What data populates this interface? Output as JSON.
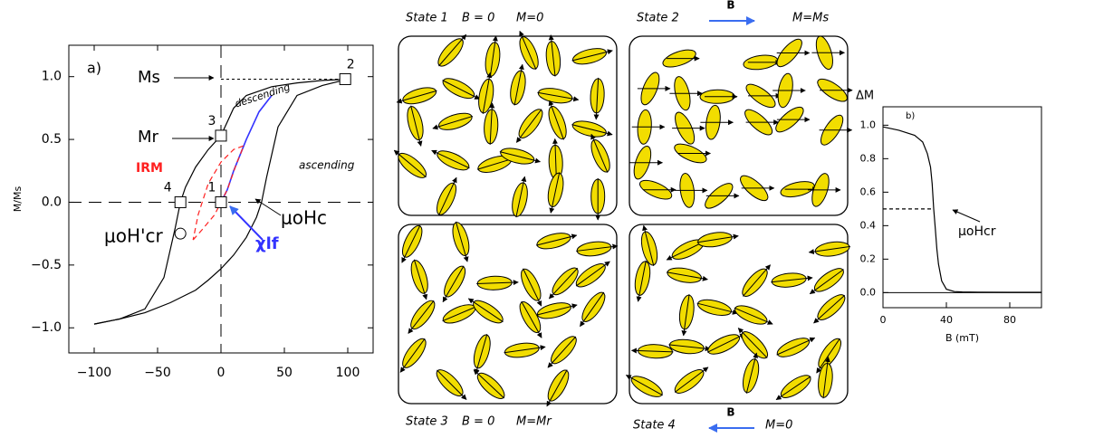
{
  "chart_data": [
    {
      "type": "line",
      "ylabel": "M/Ms",
      "xlim": [
        -120,
        120
      ],
      "ylim": [
        -1.2,
        1.25
      ],
      "xticks": [
        {
          "value": -100,
          "label": "−100"
        },
        {
          "value": -50,
          "label": "−50"
        },
        0,
        50,
        100
      ],
      "yticks": [
        {
          "value": 1,
          "label": "1.0"
        },
        {
          "value": 0.5,
          "label": "0.5"
        },
        {
          "value": 0,
          "label": "0.0"
        },
        {
          "value": -0.5,
          "label": "−0.5"
        },
        {
          "value": -1,
          "label": "−1.0"
        }
      ],
      "series": [
        {
          "color": "#000000",
          "dash": false,
          "x": [
            100,
            80,
            60,
            40,
            20,
            10,
            0,
            -10,
            -20,
            -28,
            -32,
            -36,
            -45,
            -60,
            -80,
            -100
          ],
          "values": [
            0.98,
            0.97,
            0.95,
            0.92,
            0.85,
            0.75,
            0.53,
            0.42,
            0.28,
            0.12,
            0,
            -0.2,
            -0.6,
            -0.85,
            -0.93,
            -0.97
          ]
        },
        {
          "color": "#000000",
          "dash": false,
          "x": [
            -100,
            -80,
            -60,
            -40,
            -20,
            -10,
            0,
            10,
            20,
            28,
            32,
            36,
            45,
            60,
            80,
            100
          ],
          "values": [
            -0.97,
            -0.93,
            -0.88,
            -0.8,
            -0.7,
            -0.62,
            -0.53,
            -0.42,
            -0.28,
            -0.12,
            0,
            0.2,
            0.6,
            0.85,
            0.93,
            0.98
          ]
        },
        {
          "color": "#3333ff",
          "dash": false,
          "x": [
            0,
            5,
            10,
            20,
            30,
            40
          ],
          "values": [
            0,
            0.1,
            0.25,
            0.5,
            0.72,
            0.85
          ]
        },
        {
          "color": "#ff2020",
          "dash": true,
          "x": [
            -22,
            -15,
            -5,
            5,
            12,
            18,
            10,
            0,
            -10,
            -18,
            -22
          ],
          "values": [
            -0.3,
            -0.22,
            -0.1,
            0.1,
            0.3,
            0.45,
            0.42,
            0.32,
            0.15,
            -0.1,
            -0.3
          ]
        }
      ],
      "points": {
        "x": [
          0,
          98,
          0,
          -32,
          -32
        ],
        "values": [
          0,
          0.98,
          0.53,
          0,
          -0.25
        ],
        "markers": [
          "square",
          "square",
          "square",
          "square",
          "circle"
        ],
        "point_labels": [
          "1",
          "2",
          "3",
          "4",
          null
        ]
      },
      "annotations": [
        {
          "text": "a)"
        },
        {
          "text": "Ms"
        },
        {
          "text": "Mr"
        },
        {
          "text": "descending"
        },
        {
          "text": "ascending"
        },
        {
          "text": "IRM",
          "color": "#ff2020"
        },
        {
          "text": "χlf",
          "color": "#3333ff"
        },
        {
          "text": "μoH'cr"
        },
        {
          "text": "μoHc"
        }
      ]
    },
    {
      "type": "line",
      "ylabel": "ΔM",
      "xlabel": "B (mT)",
      "xlim": [
        0,
        100
      ],
      "ylim": [
        -0.09,
        1.11
      ],
      "xticks": [
        0,
        40,
        80
      ],
      "yticks": [
        {
          "value": 0,
          "label": "0.0"
        },
        {
          "value": 0.2,
          "label": "0.2"
        },
        {
          "value": 0.4,
          "label": "0.4"
        },
        {
          "value": 0.6,
          "label": "0.6"
        },
        {
          "value": 0.8,
          "label": "0.8"
        },
        {
          "value": 1,
          "label": "1.0"
        }
      ],
      "series": [
        {
          "color": "#000000",
          "dash": false,
          "x": [
            0,
            10,
            20,
            25,
            28,
            30,
            31,
            32,
            33,
            34,
            35,
            37,
            40,
            45,
            50,
            60,
            80,
            100
          ],
          "values": [
            0.99,
            0.97,
            0.94,
            0.9,
            0.83,
            0.75,
            0.65,
            0.5,
            0.38,
            0.26,
            0.17,
            0.07,
            0.02,
            0.006,
            0.004,
            0.003,
            0.002,
            0.002
          ]
        },
        {
          "color": "#000000",
          "dash": true,
          "x": [
            0,
            32
          ],
          "values": [
            0.5,
            0.5
          ]
        }
      ],
      "annotations": [
        {
          "text": "b)"
        },
        {
          "text": "μoHcr"
        }
      ]
    }
  ],
  "panels": [
    {
      "state": "State 1",
      "field": "B = 0",
      "magnetization": "M=0"
    },
    {
      "state": "State 2",
      "field": "B",
      "magnetization": "M=Ms"
    },
    {
      "state": "State 3",
      "field": "B = 0",
      "magnetization": "M=Mr"
    },
    {
      "state": "State 4",
      "field": "B",
      "magnetization": "M=0"
    }
  ]
}
